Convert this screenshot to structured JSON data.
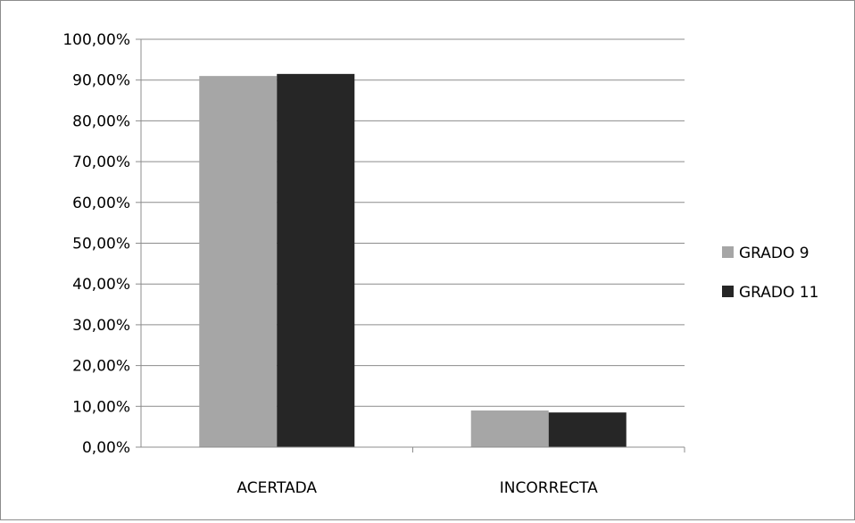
{
  "chart_data": {
    "type": "bar",
    "categories": [
      "ACERTADA",
      "INCORRECTA"
    ],
    "series": [
      {
        "name": "GRADO 9",
        "values": [
          91.0,
          9.0
        ],
        "color": "#a6a6a6"
      },
      {
        "name": "GRADO 11",
        "values": [
          91.5,
          8.5
        ],
        "color": "#262626"
      }
    ],
    "y_ticks": [
      "0,00%",
      "10,00%",
      "20,00%",
      "30,00%",
      "40,00%",
      "50,00%",
      "60,00%",
      "70,00%",
      "80,00%",
      "90,00%",
      "100,00%"
    ],
    "ylim": [
      0,
      100
    ],
    "grid": true,
    "legend_position": "right",
    "title": "",
    "xlabel": "",
    "ylabel": ""
  }
}
